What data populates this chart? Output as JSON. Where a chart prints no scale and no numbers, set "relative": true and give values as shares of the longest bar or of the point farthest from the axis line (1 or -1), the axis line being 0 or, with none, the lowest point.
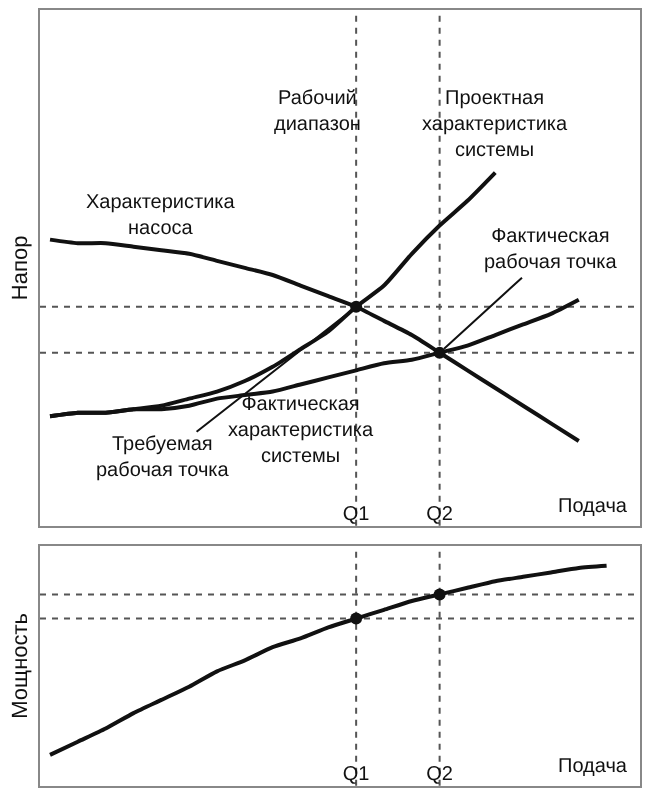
{
  "chart_data": [
    {
      "type": "line",
      "relative": true,
      "ylabel": "Напор",
      "xlabel": "Подача",
      "legend": false,
      "grid": false,
      "marker": "none",
      "line_style": "solid",
      "categories": [
        null,
        null,
        null,
        null,
        null,
        null,
        null,
        null,
        null,
        null,
        null,
        "Q1",
        null,
        null,
        "Q2",
        null,
        null,
        null,
        null,
        null,
        null,
        null
      ],
      "series": [
        {
          "name": "Характеристика насоса",
          "color": "#111111",
          "values": [
            0.81,
            0.8,
            0.8,
            0.79,
            0.78,
            0.77,
            0.75,
            0.73,
            0.71,
            0.68,
            0.65,
            0.62,
            0.58,
            0.54,
            0.49,
            0.44,
            0.39,
            0.34,
            0.29,
            0.24,
            null,
            null
          ]
        },
        {
          "name": "Проектная характеристика системы",
          "color": "#111111",
          "values": [
            0.31,
            0.32,
            0.32,
            0.33,
            0.34,
            0.36,
            0.38,
            0.41,
            0.45,
            0.5,
            0.55,
            0.62,
            0.68,
            0.77,
            0.85,
            0.92,
            1.0,
            null,
            null,
            null,
            null,
            null
          ]
        },
        {
          "name": "Фактическая характеристика системы",
          "color": "#111111",
          "values": [
            0.31,
            0.32,
            0.32,
            0.33,
            0.33,
            0.34,
            0.36,
            0.37,
            0.38,
            0.4,
            0.42,
            0.44,
            0.46,
            0.47,
            0.49,
            0.51,
            0.54,
            0.57,
            0.6,
            0.64,
            null,
            null
          ]
        },
        {
          "type": "scatter",
          "marker": "circle",
          "color": "#111111",
          "x": [
            "Q1",
            "Q2"
          ],
          "values": [
            0.62,
            0.49
          ]
        }
      ],
      "ref_lines": [
        {
          "axis": "y",
          "value": 0.62,
          "color": "#555555",
          "line_style": "dotted"
        },
        {
          "axis": "y",
          "value": 0.49,
          "color": "#555555",
          "line_style": "dotted"
        },
        {
          "axis": "x",
          "value": "Q1",
          "color": "#555555",
          "line_style": "dotted"
        },
        {
          "axis": "x",
          "value": "Q2",
          "color": "#555555",
          "line_style": "dotted"
        }
      ],
      "annotations": [
        "Рабочий диапазон",
        {
          "text": "Требуемая рабочая точка",
          "x": "Q1",
          "y": 0.62
        },
        {
          "text": "Фактическая рабочая точка",
          "x": "Q2",
          "y": 0.49
        }
      ]
    },
    {
      "type": "line",
      "relative": true,
      "ylabel": "Мощность",
      "xlabel": "Подача",
      "legend": false,
      "grid": false,
      "marker": "none",
      "line_style": "solid",
      "categories": [
        null,
        null,
        null,
        null,
        null,
        null,
        null,
        null,
        null,
        null,
        null,
        "Q1",
        null,
        null,
        "Q2",
        null,
        null,
        null,
        null,
        null,
        null,
        null
      ],
      "series": [
        {
          "color": "#111111",
          "values": [
            0.14,
            0.2,
            0.26,
            0.33,
            0.39,
            0.45,
            0.52,
            0.57,
            0.63,
            0.67,
            0.72,
            0.76,
            0.8,
            0.84,
            0.87,
            0.9,
            0.93,
            0.95,
            0.97,
            0.99,
            1.0,
            null
          ]
        },
        {
          "type": "scatter",
          "marker": "circle",
          "color": "#111111",
          "x": [
            "Q1",
            "Q2"
          ],
          "values": [
            0.76,
            0.87
          ]
        }
      ],
      "ref_lines": [
        {
          "axis": "y",
          "value": 0.76,
          "color": "#555555",
          "line_style": "dotted"
        },
        {
          "axis": "y",
          "value": 0.87,
          "color": "#555555",
          "line_style": "dotted"
        },
        {
          "axis": "x",
          "value": "Q1",
          "color": "#555555",
          "line_style": "dotted"
        },
        {
          "axis": "x",
          "value": "Q2",
          "color": "#555555",
          "line_style": "dotted"
        }
      ]
    }
  ]
}
